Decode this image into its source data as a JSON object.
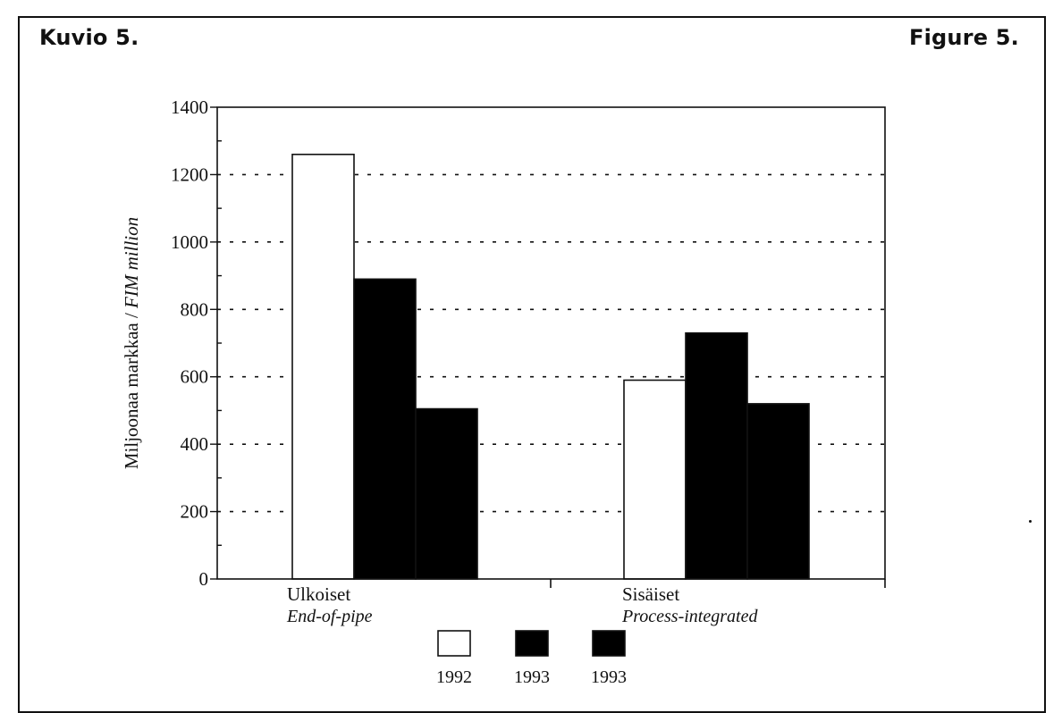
{
  "header": {
    "title_fi": "Kuvio 5.",
    "title_en": "Figure 5."
  },
  "chart_data": {
    "type": "bar",
    "categories": [
      {
        "label": "Ulkoiset",
        "sublabel": "End-of-pipe"
      },
      {
        "label": "Sisäiset",
        "sublabel": "Process-integrated"
      }
    ],
    "series": [
      {
        "name": "1992",
        "color": "#ffffff",
        "values": [
          1260,
          590
        ]
      },
      {
        "name": "1993",
        "color": "#000000",
        "values": [
          890,
          730
        ]
      },
      {
        "name": "1993",
        "color": "#000000",
        "values": [
          505,
          520
        ]
      }
    ],
    "ylabel": "Miljoonaa markkaa",
    "ylabel_sep": " / ",
    "ylabel_en": "FIM million",
    "ylim": [
      0,
      1400
    ],
    "yticks": [
      0,
      200,
      400,
      600,
      800,
      1000,
      1200,
      1400
    ],
    "grid": "dotted",
    "legend_position": "bottom-center"
  }
}
